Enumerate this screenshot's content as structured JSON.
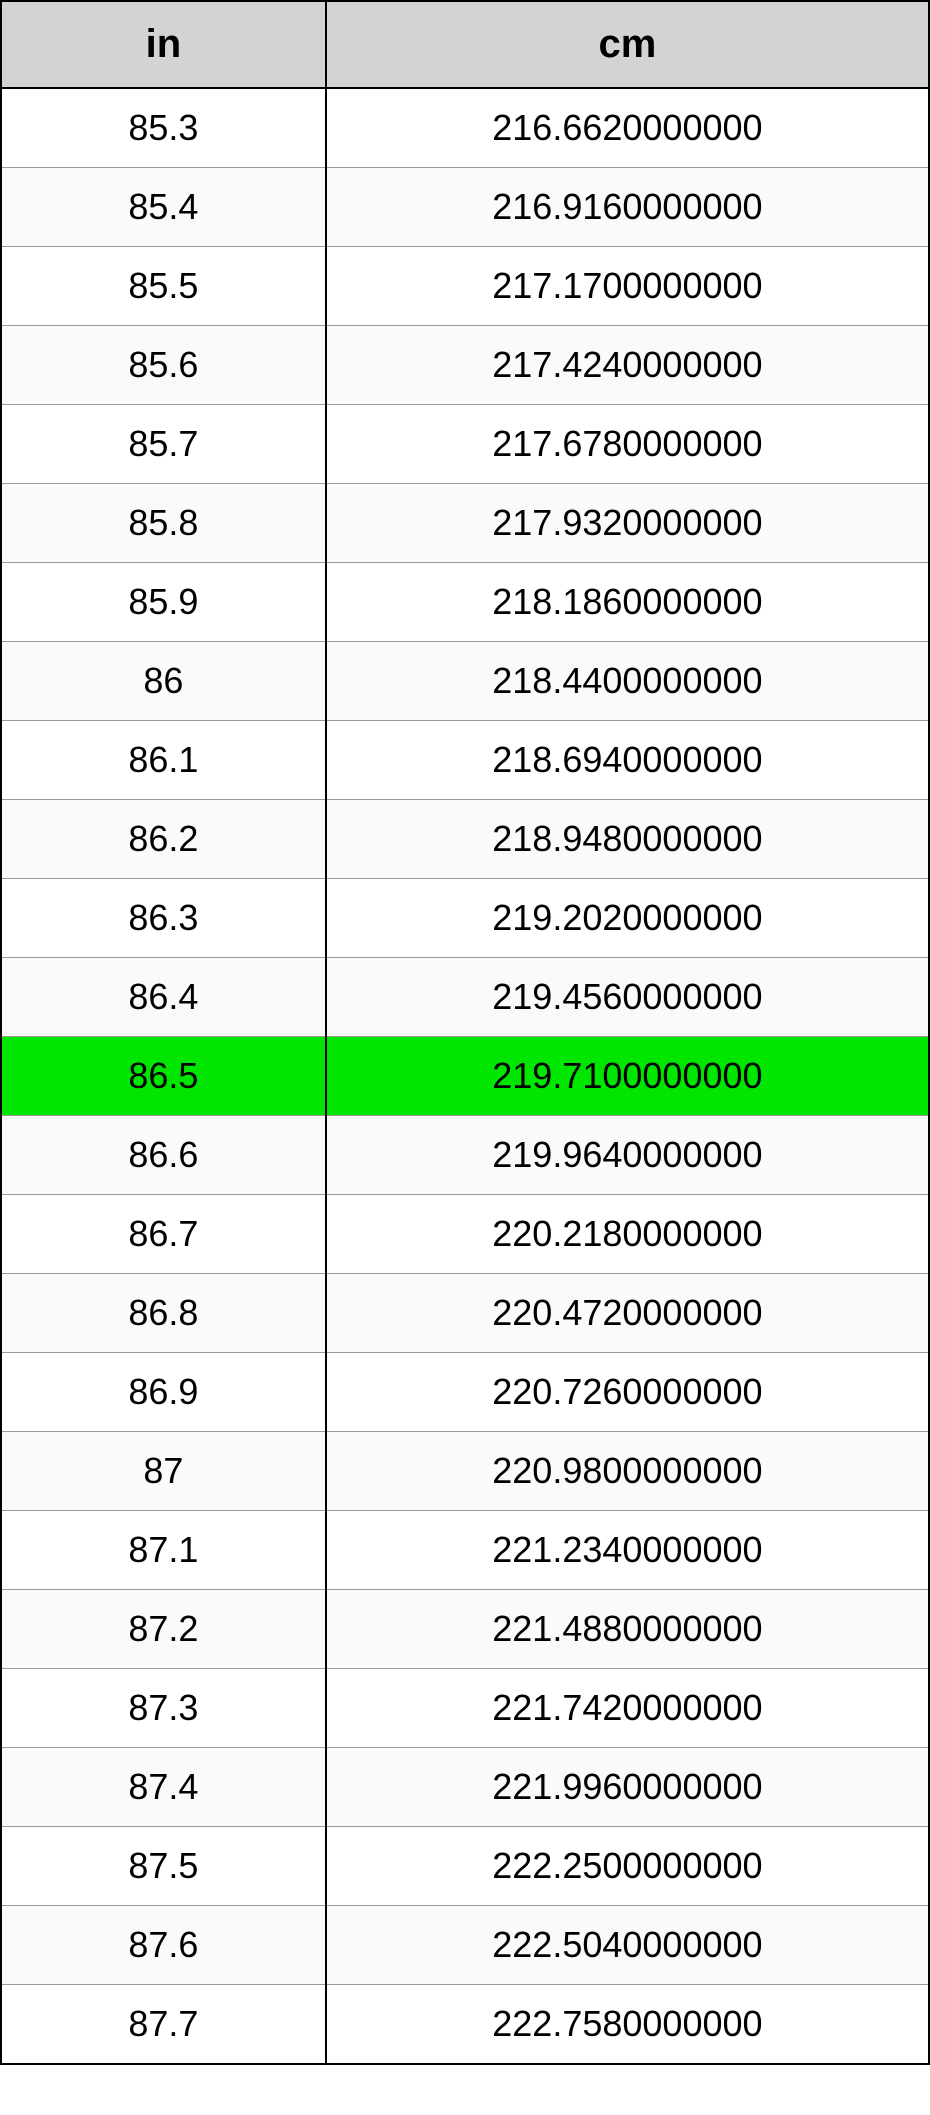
{
  "table": {
    "type": "table",
    "header_background": "#d3d3d3",
    "highlight_background": "#00e600",
    "odd_row_background": "#ffffff",
    "even_row_background": "#fafafa",
    "border_color": "#000000",
    "header_fontsize": 40,
    "cell_fontsize": 36,
    "columns": [
      {
        "label": "in",
        "key": "in"
      },
      {
        "label": "cm",
        "key": "cm"
      }
    ],
    "highlight_index": 12,
    "rows": [
      {
        "in": "85.3",
        "cm": "216.6620000000"
      },
      {
        "in": "85.4",
        "cm": "216.9160000000"
      },
      {
        "in": "85.5",
        "cm": "217.1700000000"
      },
      {
        "in": "85.6",
        "cm": "217.4240000000"
      },
      {
        "in": "85.7",
        "cm": "217.6780000000"
      },
      {
        "in": "85.8",
        "cm": "217.9320000000"
      },
      {
        "in": "85.9",
        "cm": "218.1860000000"
      },
      {
        "in": "86",
        "cm": "218.4400000000"
      },
      {
        "in": "86.1",
        "cm": "218.6940000000"
      },
      {
        "in": "86.2",
        "cm": "218.9480000000"
      },
      {
        "in": "86.3",
        "cm": "219.2020000000"
      },
      {
        "in": "86.4",
        "cm": "219.4560000000"
      },
      {
        "in": "86.5",
        "cm": "219.7100000000"
      },
      {
        "in": "86.6",
        "cm": "219.9640000000"
      },
      {
        "in": "86.7",
        "cm": "220.2180000000"
      },
      {
        "in": "86.8",
        "cm": "220.4720000000"
      },
      {
        "in": "86.9",
        "cm": "220.7260000000"
      },
      {
        "in": "87",
        "cm": "220.9800000000"
      },
      {
        "in": "87.1",
        "cm": "221.2340000000"
      },
      {
        "in": "87.2",
        "cm": "221.4880000000"
      },
      {
        "in": "87.3",
        "cm": "221.7420000000"
      },
      {
        "in": "87.4",
        "cm": "221.9960000000"
      },
      {
        "in": "87.5",
        "cm": "222.2500000000"
      },
      {
        "in": "87.6",
        "cm": "222.5040000000"
      },
      {
        "in": "87.7",
        "cm": "222.7580000000"
      }
    ]
  }
}
